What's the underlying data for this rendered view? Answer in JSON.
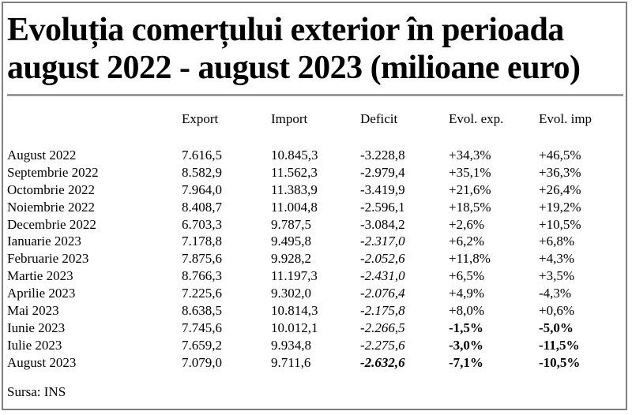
{
  "title": {
    "line1": "Evoluția comerțului exterior în perioada",
    "line2": "august 2022 - august 2023 (milioane euro)"
  },
  "table": {
    "columns": [
      "",
      "Export",
      "Import",
      "Deficit",
      "Evol. exp.",
      "Evol. imp"
    ],
    "rows": [
      {
        "period": "August 2022",
        "export": "7.616,5",
        "import": "10.845,3",
        "deficit": "-3.228,8",
        "evol_exp": "+34,3%",
        "evol_imp": "+46,5%"
      },
      {
        "period": "Septembrie 2022",
        "export": "8.582,9",
        "import": "11.562,3",
        "deficit": "-2.979,4",
        "evol_exp": "+35,1%",
        "evol_imp": "+36,3%"
      },
      {
        "period": "Octombrie 2022",
        "export": "7.964,0",
        "import": "11.383,9",
        "deficit": "-3.419,9",
        "evol_exp": "+21,6%",
        "evol_imp": "+26,4%"
      },
      {
        "period": "Noiembrie 2022",
        "export": "8.408,7",
        "import": "11.004,8",
        "deficit": "-2.596,1",
        "evol_exp": "+18,5%",
        "evol_imp": "+19,2%"
      },
      {
        "period": "Decembrie 2022",
        "export": "6.703,3",
        "import": "9.787,5",
        "deficit": "-3.084,2",
        "evol_exp": "+2,6%",
        "evol_imp": "+10,5%"
      },
      {
        "period": "Ianuarie 2023",
        "export": "7.178,8",
        "import": "9.495,8",
        "deficit": "-2.317,0",
        "evol_exp": "+6,2%",
        "evol_imp": "+6,8%"
      },
      {
        "period": "Februarie 2023",
        "export": "7.875,6",
        "import": "9.928,2",
        "deficit": "-2.052,6",
        "evol_exp": "+11,8%",
        "evol_imp": "+4,3%"
      },
      {
        "period": "Martie 2023",
        "export": "8.766,3",
        "import": "11.197,3",
        "deficit": "-2.431,0",
        "evol_exp": "+6,5%",
        "evol_imp": "+3,5%"
      },
      {
        "period": "Aprilie 2023",
        "export": "7.225,6",
        "import": "9.302,0",
        "deficit": "-2.076,4",
        "evol_exp": "+4,9%",
        "evol_imp": "-4,3%"
      },
      {
        "period": "Mai 2023",
        "export": "8.638,5",
        "import": "10.814,3",
        "deficit": "-2.175,8",
        "evol_exp": "+8,0%",
        "evol_imp": "+0,6%"
      },
      {
        "period": "Iunie 2023",
        "export": "7.745,6",
        "import": "10.012,1",
        "deficit": "-2.266,5",
        "evol_exp": "-1,5%",
        "evol_imp": "-5,0%"
      },
      {
        "period": "Iulie 2023",
        "export": "7.659,2",
        "import": "9.934,8",
        "deficit": "-2.275,6",
        "evol_exp": "-3,0%",
        "evol_imp": "-11,5%"
      },
      {
        "period": "August 2023",
        "export": "7.079,0",
        "import": "9.711,6",
        "deficit": "-2.632,6",
        "evol_exp": "-7,1%",
        "evol_imp": "-10,5%"
      }
    ]
  },
  "source": "Sursa: INS"
}
